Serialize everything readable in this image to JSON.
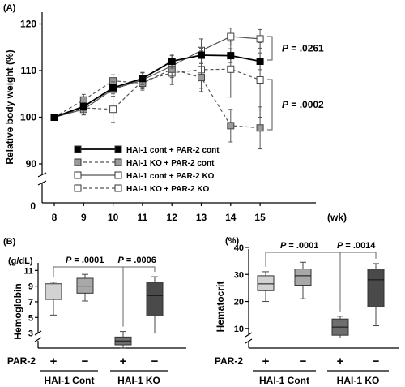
{
  "chart_data": [
    {
      "panel": "(A)",
      "type": "line",
      "ylabel": "Relative body weight (%)",
      "x_unit": "(wk)",
      "x": [
        8,
        9,
        10,
        11,
        12,
        13,
        14,
        15
      ],
      "yticks": [
        90,
        100,
        110,
        120
      ],
      "ylim": [
        90,
        120
      ],
      "y_axis_break_label": "0",
      "series": [
        {
          "name": "HAI-1 cont + PAR-2 cont",
          "marker": "filled-black",
          "line": "solid",
          "values": [
            100,
            102.3,
            106.3,
            108.3,
            112.0,
            113.3,
            113.2,
            112.0
          ],
          "errors": [
            0,
            0.8,
            1.3,
            1.3,
            1.5,
            1.5,
            1.5,
            1.8
          ]
        },
        {
          "name": "HAI-1 KO + PAR-2 cont",
          "marker": "filled-gray",
          "line": "dashed",
          "values": [
            100,
            103.7,
            107.8,
            107.3,
            110.3,
            108.5,
            98.2,
            97.7
          ],
          "errors": [
            0,
            1.2,
            1.3,
            1.5,
            1.8,
            3.0,
            3.5,
            4.5
          ]
        },
        {
          "name": "HAI-1 cont + PAR-2 KO",
          "marker": "open",
          "line": "solid",
          "values": [
            100,
            101.7,
            106.0,
            108.0,
            111.0,
            114.3,
            117.3,
            116.8
          ],
          "errors": [
            0,
            1.2,
            1.6,
            1.6,
            2.2,
            2.5,
            1.8,
            2.0
          ]
        },
        {
          "name": "HAI-1 KO + PAR-2 KO",
          "marker": "open",
          "line": "dashed",
          "values": [
            100,
            102.0,
            101.7,
            107.8,
            109.5,
            110.2,
            110.3,
            108.0
          ],
          "errors": [
            0,
            1.5,
            2.8,
            1.7,
            2.5,
            4.0,
            6.0,
            8.0
          ]
        }
      ],
      "annotations": [
        {
          "p_label": "P",
          "text": " = .0261",
          "between": [
            "HAI-1 cont + PAR-2 KO",
            "HAI-1 cont + PAR-2 cont"
          ]
        },
        {
          "p_label": "P",
          "text": " = .0002",
          "between": [
            "HAI-1 KO + PAR-2 KO",
            "HAI-1 KO + PAR-2 cont"
          ]
        }
      ]
    },
    {
      "panel": "(B)",
      "type": "box",
      "ylabel": "Hemoglobin",
      "unit": "(g/dL)",
      "yticks": [
        3,
        5,
        7,
        9,
        11
      ],
      "ylim": [
        2,
        12
      ],
      "row_label": "PAR-2",
      "par2_signs": [
        "+",
        "−",
        "+",
        "−"
      ],
      "groups": [
        "HAI-1 Cont",
        "HAI-1 KO"
      ],
      "boxes": [
        {
          "min": 5.3,
          "q1": 7.3,
          "median": 8.5,
          "q3": 9.3,
          "max": 9.5,
          "fill": "#d2d2d2"
        },
        {
          "min": 7.1,
          "q1": 8.1,
          "median": 9.0,
          "q3": 10.0,
          "max": 10.5,
          "fill": "#a8a8a8"
        },
        {
          "min": 1.1,
          "q1": 1.5,
          "median": 2.0,
          "q3": 2.5,
          "max": 3.2,
          "fill": "#6e6e6e"
        },
        {
          "min": 3.0,
          "q1": 5.2,
          "median": 7.8,
          "q3": 9.5,
          "max": 10.2,
          "fill": "#4a4a4a"
        }
      ],
      "annotations": [
        {
          "p_label": "P",
          "text": " = .0001",
          "from": 0,
          "to": 2
        },
        {
          "p_label": "P",
          "text": " = .0006",
          "from": 2,
          "to": 3
        }
      ]
    },
    {
      "panel": "",
      "type": "box",
      "ylabel": "Hematocrit",
      "unit": "(%)",
      "yticks": [
        10,
        20,
        30,
        40
      ],
      "ylim": [
        5,
        40
      ],
      "row_label": "PAR-2",
      "par2_signs": [
        "+",
        "−",
        "+",
        "−"
      ],
      "groups": [
        "HAI-1 Cont",
        "HAI-1 KO"
      ],
      "boxes": [
        {
          "min": 20.0,
          "q1": 24.0,
          "median": 26.5,
          "q3": 29.5,
          "max": 31.0,
          "fill": "#d2d2d2"
        },
        {
          "min": 21.0,
          "q1": 26.0,
          "median": 29.5,
          "q3": 32.0,
          "max": 34.5,
          "fill": "#a8a8a8"
        },
        {
          "min": 6.5,
          "q1": 7.5,
          "median": 10.5,
          "q3": 13.5,
          "max": 14.5,
          "fill": "#6e6e6e"
        },
        {
          "min": 11.0,
          "q1": 18.0,
          "median": 28.0,
          "q3": 32.0,
          "max": 34.0,
          "fill": "#4a4a4a"
        }
      ],
      "annotations": [
        {
          "p_label": "P",
          "text": " = .0001",
          "from": 0,
          "to": 2
        },
        {
          "p_label": "P",
          "text": " = .0014",
          "from": 2,
          "to": 3
        }
      ]
    }
  ]
}
